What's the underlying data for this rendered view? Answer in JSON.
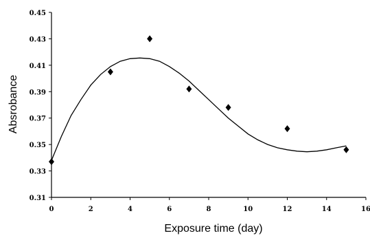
{
  "chart_data": {
    "type": "scatter",
    "title": "",
    "xlabel": "Exposure time (day)",
    "ylabel": "Absrobance",
    "xlim": [
      0,
      16
    ],
    "ylim": [
      0.31,
      0.45
    ],
    "x_ticks": [
      "0",
      "2",
      "4",
      "6",
      "8",
      "10",
      "12",
      "14",
      "16"
    ],
    "y_ticks": [
      "0.31",
      "0.33",
      "0.35",
      "0.37",
      "0.39",
      "0.41",
      "0.43",
      "0.45"
    ],
    "grid": false,
    "legend": "none",
    "marker": "diamond",
    "series": [
      {
        "x": [
          0,
          3,
          5,
          7,
          9,
          12,
          15
        ],
        "y": [
          0.337,
          0.405,
          0.43,
          0.392,
          0.378,
          0.362,
          0.346
        ]
      }
    ],
    "trendline": {
      "type": "polynomial",
      "x": [
        0,
        0.5,
        1,
        1.5,
        2,
        2.5,
        3,
        3.5,
        4,
        4.5,
        5,
        5.5,
        6,
        6.5,
        7,
        7.5,
        8,
        8.5,
        9,
        9.5,
        10,
        10.5,
        11,
        11.5,
        12,
        12.5,
        13,
        13.5,
        14,
        14.5,
        15
      ],
      "y": [
        0.338,
        0.356,
        0.372,
        0.384,
        0.395,
        0.403,
        0.409,
        0.413,
        0.415,
        0.4155,
        0.415,
        0.413,
        0.409,
        0.404,
        0.398,
        0.391,
        0.384,
        0.377,
        0.37,
        0.364,
        0.358,
        0.3535,
        0.35,
        0.3475,
        0.346,
        0.345,
        0.3445,
        0.345,
        0.346,
        0.3475,
        0.349
      ]
    },
    "colors": {
      "axis": "#000000",
      "marker": "#000000",
      "line": "#000000"
    }
  }
}
